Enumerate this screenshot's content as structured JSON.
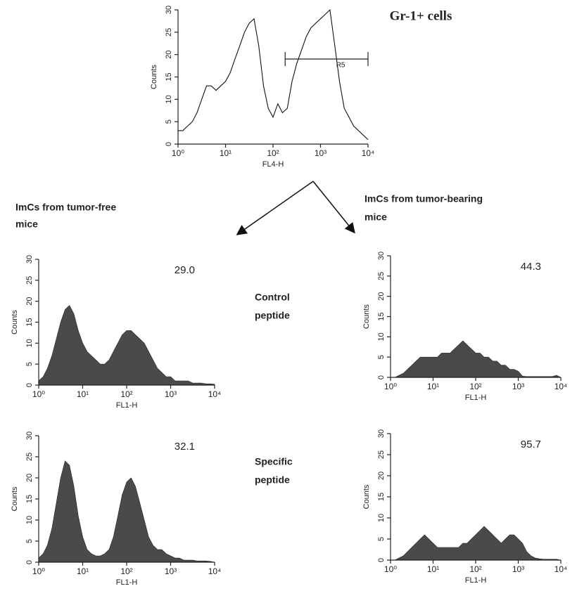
{
  "labels": {
    "left_heading": [
      "ImCs from tumor-free",
      "mice"
    ],
    "right_heading": [
      "ImCs from tumor-bearing",
      "mice"
    ],
    "row1": [
      "Control",
      "peptide"
    ],
    "row2": [
      "Specific",
      "peptide"
    ]
  },
  "chart_data": [
    {
      "type": "area",
      "title": "Gr-1+ cells",
      "fill": false,
      "color": "#111111",
      "xscale": "log",
      "x_label": "FL4-H",
      "y_label": "Counts",
      "xlim": [
        1,
        10000
      ],
      "ylim": [
        0,
        30
      ],
      "xticks": [
        {
          "value": 1,
          "label": "10⁰"
        },
        {
          "value": 10,
          "label": "10¹"
        },
        {
          "value": 100,
          "label": "10²"
        },
        {
          "value": 1000,
          "label": "10³"
        },
        {
          "value": 10000,
          "label": "10⁴"
        }
      ],
      "yticks": [
        0,
        5,
        10,
        15,
        20,
        25,
        30
      ],
      "gate": {
        "label": "R5",
        "xlim": [
          180,
          10000
        ],
        "y": 19
      },
      "x": [
        1,
        1.26,
        1.58,
        2,
        2.51,
        3.16,
        3.98,
        5.01,
        6.31,
        7.94,
        10,
        12.6,
        15.8,
        20,
        25.1,
        31.6,
        39.8,
        50.1,
        63.1,
        79.4,
        100,
        126,
        158,
        200,
        251,
        316,
        398,
        501,
        631,
        794,
        1000,
        1260,
        1580,
        2000,
        2510,
        3160,
        3980,
        5010,
        6310,
        7940,
        10000
      ],
      "values": [
        3,
        3,
        4,
        5,
        7,
        10,
        13,
        13,
        12,
        13,
        14,
        16,
        19,
        22,
        25,
        27,
        28,
        22,
        13,
        8,
        6,
        9,
        7,
        8,
        14,
        18,
        21,
        24,
        26,
        27,
        28,
        29,
        30,
        22,
        14,
        8,
        6,
        4,
        3,
        2,
        1
      ]
    },
    {
      "type": "area",
      "annotation": "29.0",
      "fill": true,
      "color": "#4a4a4a",
      "xscale": "log",
      "x_label": "FL1-H",
      "y_label": "Counts",
      "xlim": [
        1,
        10000
      ],
      "ylim": [
        0,
        30
      ],
      "xticks": [
        {
          "value": 1,
          "label": "10⁰"
        },
        {
          "value": 10,
          "label": "10¹"
        },
        {
          "value": 100,
          "label": "10²"
        },
        {
          "value": 1000,
          "label": "10³"
        },
        {
          "value": 10000,
          "label": "10⁴"
        }
      ],
      "yticks": [
        0,
        5,
        10,
        15,
        20,
        25,
        30
      ],
      "x": [
        1,
        1.26,
        1.58,
        2,
        2.51,
        3.16,
        3.98,
        5.01,
        6.31,
        7.94,
        10,
        12.6,
        15.8,
        20,
        25.1,
        31.6,
        39.8,
        50.1,
        63.1,
        79.4,
        100,
        126,
        158,
        200,
        251,
        316,
        398,
        501,
        631,
        794,
        1000,
        1260,
        1580,
        2000,
        2510,
        3160,
        3980,
        5010,
        6310,
        7940,
        10000
      ],
      "values": [
        1,
        2,
        4,
        7,
        11,
        15,
        18,
        19,
        17,
        13,
        10,
        8,
        7,
        6,
        5,
        5,
        6,
        8,
        10,
        12,
        13,
        13,
        12,
        11,
        10,
        8,
        6,
        4,
        3,
        2,
        2,
        1,
        1,
        1,
        1,
        0.5,
        0.5,
        0.5,
        0.3,
        0.3,
        0.2
      ]
    },
    {
      "type": "area",
      "annotation": "44.3",
      "fill": true,
      "color": "#4a4a4a",
      "xscale": "log",
      "x_label": "FL1-H",
      "y_label": "Counts",
      "xlim": [
        1,
        10000
      ],
      "ylim": [
        0,
        30
      ],
      "xticks": [
        {
          "value": 1,
          "label": "10⁰"
        },
        {
          "value": 10,
          "label": "10¹"
        },
        {
          "value": 100,
          "label": "10²"
        },
        {
          "value": 1000,
          "label": "10³"
        },
        {
          "value": 10000,
          "label": "10⁴"
        }
      ],
      "yticks": [
        0,
        5,
        10,
        15,
        20,
        25,
        30
      ],
      "x": [
        1,
        1.26,
        1.58,
        2,
        2.51,
        3.16,
        3.98,
        5.01,
        6.31,
        7.94,
        10,
        12.6,
        15.8,
        20,
        25.1,
        31.6,
        39.8,
        50.1,
        63.1,
        79.4,
        100,
        126,
        158,
        200,
        251,
        316,
        398,
        501,
        631,
        794,
        1000,
        1260,
        1580,
        2000,
        2510,
        3160,
        3980,
        5010,
        6310,
        7940,
        10000
      ],
      "values": [
        0,
        0,
        0.5,
        1,
        2,
        3,
        4,
        5,
        5,
        5,
        5,
        5,
        6,
        6,
        6,
        7,
        8,
        9,
        8,
        7,
        6,
        6,
        5,
        5,
        4,
        4,
        3,
        3,
        2,
        2,
        1.5,
        0.3,
        0.2,
        0.2,
        0.2,
        0.2,
        0.2,
        0.2,
        0.2,
        0.5,
        0
      ]
    },
    {
      "type": "area",
      "annotation": "32.1",
      "fill": true,
      "color": "#4a4a4a",
      "xscale": "log",
      "x_label": "FL1-H",
      "y_label": "Counts",
      "xlim": [
        1,
        10000
      ],
      "ylim": [
        0,
        30
      ],
      "xticks": [
        {
          "value": 1,
          "label": "10⁰"
        },
        {
          "value": 10,
          "label": "10¹"
        },
        {
          "value": 100,
          "label": "10²"
        },
        {
          "value": 1000,
          "label": "10³"
        },
        {
          "value": 10000,
          "label": "10⁴"
        }
      ],
      "yticks": [
        0,
        5,
        10,
        15,
        20,
        25,
        30
      ],
      "x": [
        1,
        1.26,
        1.58,
        2,
        2.51,
        3.16,
        3.98,
        5.01,
        6.31,
        7.94,
        10,
        12.6,
        15.8,
        20,
        25.1,
        31.6,
        39.8,
        50.1,
        63.1,
        79.4,
        100,
        126,
        158,
        200,
        251,
        316,
        398,
        501,
        631,
        794,
        1000,
        1260,
        1580,
        2000,
        2510,
        3160,
        3980,
        5010,
        6310,
        7940,
        10000
      ],
      "values": [
        1,
        2,
        4,
        8,
        14,
        20,
        24,
        23,
        18,
        11,
        6,
        3,
        2,
        1.5,
        1.5,
        2,
        3,
        6,
        11,
        16,
        19,
        20,
        18,
        14,
        10,
        6,
        4,
        3,
        3,
        2,
        1.5,
        1,
        1,
        0.5,
        0.5,
        0.5,
        0.3,
        0.3,
        0.3,
        0.2,
        0
      ]
    },
    {
      "type": "area",
      "annotation": "95.7",
      "fill": true,
      "color": "#4a4a4a",
      "xscale": "log",
      "x_label": "FL1-H",
      "y_label": "Counts",
      "xlim": [
        1,
        10000
      ],
      "ylim": [
        0,
        30
      ],
      "xticks": [
        {
          "value": 1,
          "label": "10⁰"
        },
        {
          "value": 10,
          "label": "10¹"
        },
        {
          "value": 100,
          "label": "10²"
        },
        {
          "value": 1000,
          "label": "10³"
        },
        {
          "value": 10000,
          "label": "10⁴"
        }
      ],
      "yticks": [
        0,
        5,
        10,
        15,
        20,
        25,
        30
      ],
      "x": [
        1,
        1.26,
        1.58,
        2,
        2.51,
        3.16,
        3.98,
        5.01,
        6.31,
        7.94,
        10,
        12.6,
        15.8,
        20,
        25.1,
        31.6,
        39.8,
        50.1,
        63.1,
        79.4,
        100,
        126,
        158,
        200,
        251,
        316,
        398,
        501,
        631,
        794,
        1000,
        1260,
        1580,
        2000,
        2510,
        3160,
        3980,
        5010,
        6310,
        7940,
        10000
      ],
      "values": [
        0,
        0,
        0.5,
        1,
        2,
        3,
        4,
        5,
        6,
        5,
        4,
        3,
        3,
        3,
        3,
        3,
        3,
        4,
        4,
        5,
        6,
        7,
        8,
        7,
        6,
        5,
        4,
        5,
        6,
        6,
        5,
        4,
        2,
        1,
        0.5,
        0.3,
        0.2,
        0.2,
        0.2,
        0.2,
        0
      ]
    }
  ]
}
